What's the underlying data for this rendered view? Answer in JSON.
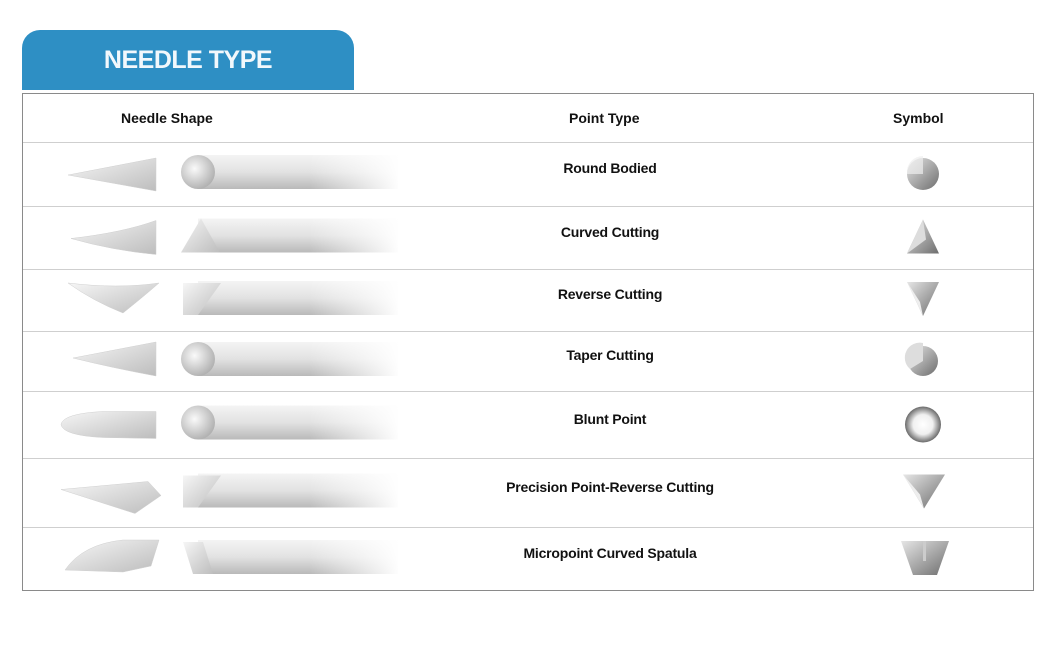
{
  "title": "NEEDLE TYPE",
  "headers": {
    "shape": "Needle Shape",
    "point": "Point Type",
    "symbol": "Symbol"
  },
  "rows": [
    {
      "point_type": "Round Bodied",
      "symbol": "round-bodied-symbol-icon"
    },
    {
      "point_type": "Curved Cutting",
      "symbol": "triangle-up-symbol-icon"
    },
    {
      "point_type": "Reverse Cutting",
      "symbol": "triangle-down-symbol-icon"
    },
    {
      "point_type": "Taper Cutting",
      "symbol": "taper-cutting-symbol-icon"
    },
    {
      "point_type": "Blunt Point",
      "symbol": "ring-symbol-icon"
    },
    {
      "point_type": "Precision Point-Reverse Cutting",
      "symbol": "triangle-down-large-symbol-icon"
    },
    {
      "point_type": "Micropoint Curved Spatula",
      "symbol": "spatula-symbol-icon"
    }
  ]
}
